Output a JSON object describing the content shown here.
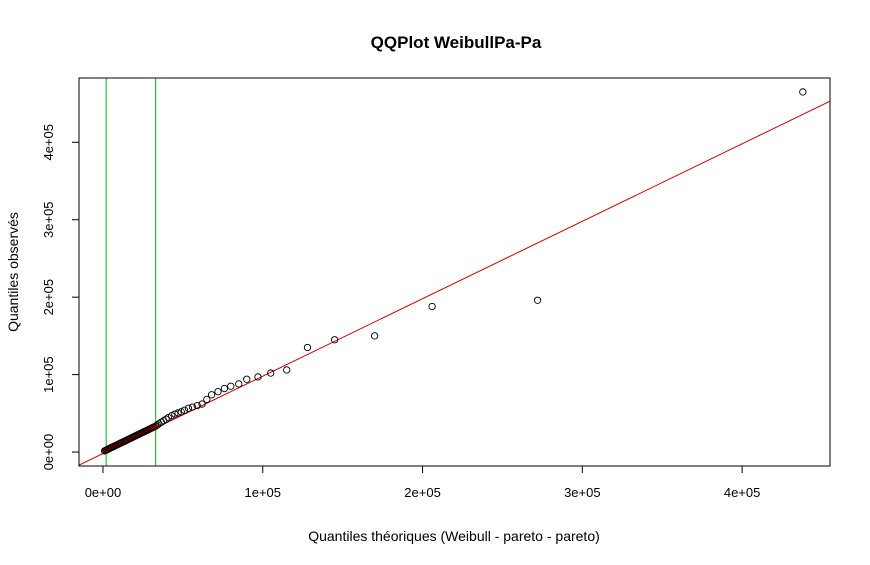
{
  "chart_data": {
    "type": "scatter",
    "title": "QQPlot WeibullPa-Pa",
    "xlabel": "Quantiles théoriques (Weibull - pareto - pareto)",
    "ylabel": "Quantiles observés",
    "xlim": [
      -15000,
      455000
    ],
    "ylim": [
      -18000,
      483000
    ],
    "x_ticks": [
      0,
      100000,
      200000,
      300000,
      400000
    ],
    "x_tick_labels": [
      "0e+00",
      "1e+05",
      "2e+05",
      "3e+05",
      "4e+05"
    ],
    "y_ticks": [
      0,
      100000,
      200000,
      300000,
      400000
    ],
    "y_tick_labels": [
      "0e+00",
      "1e+05",
      "2e+05",
      "3e+05",
      "4e+05"
    ],
    "grid": false,
    "legend": "none",
    "reference_line": {
      "intercept": -2000,
      "slope": 1.0,
      "color": "#cc0000"
    },
    "vertical_lines": {
      "x": [
        2000,
        33000
      ],
      "color": "#00bb00"
    },
    "points_color": "#000000",
    "points_fill_color": "#cc0000",
    "points_x": [
      1000,
      1800,
      2500,
      3200,
      4000,
      4800,
      5500,
      6300,
      7000,
      7800,
      8500,
      9300,
      10000,
      10800,
      11500,
      12300,
      13000,
      13800,
      14500,
      15300,
      16000,
      16800,
      17500,
      18300,
      19000,
      19800,
      20500,
      21300,
      22000,
      22800,
      23500,
      24300,
      25000,
      25800,
      26500,
      27300,
      28000,
      28800,
      29500,
      30300,
      31000,
      32000,
      33000,
      34000,
      35000,
      36500,
      38000,
      39500,
      41000,
      43000,
      45000,
      47000,
      49000,
      51000,
      53500,
      56000,
      59000,
      62000,
      65000,
      68000,
      72000,
      76000,
      80000,
      85000,
      90000,
      97000,
      105000,
      115000,
      128000,
      145000,
      170000,
      206000,
      272000,
      438000
    ],
    "points_y": [
      1500,
      2300,
      3000,
      3700,
      4500,
      5300,
      6000,
      6800,
      7500,
      8300,
      9000,
      9800,
      10500,
      11300,
      12000,
      12800,
      13500,
      14300,
      15000,
      15800,
      16500,
      17300,
      18000,
      18800,
      19500,
      20300,
      21000,
      21800,
      22500,
      23300,
      24000,
      24800,
      25500,
      26300,
      27000,
      27800,
      28500,
      29300,
      30000,
      30800,
      31500,
      32500,
      33500,
      35000,
      36500,
      38500,
      40500,
      42500,
      44500,
      47000,
      49000,
      50500,
      52000,
      54000,
      56500,
      58000,
      60000,
      62000,
      68000,
      74000,
      78000,
      82000,
      85000,
      88000,
      94000,
      97000,
      102000,
      106000,
      135000,
      145000,
      150000,
      188000,
      196000,
      465000
    ]
  }
}
